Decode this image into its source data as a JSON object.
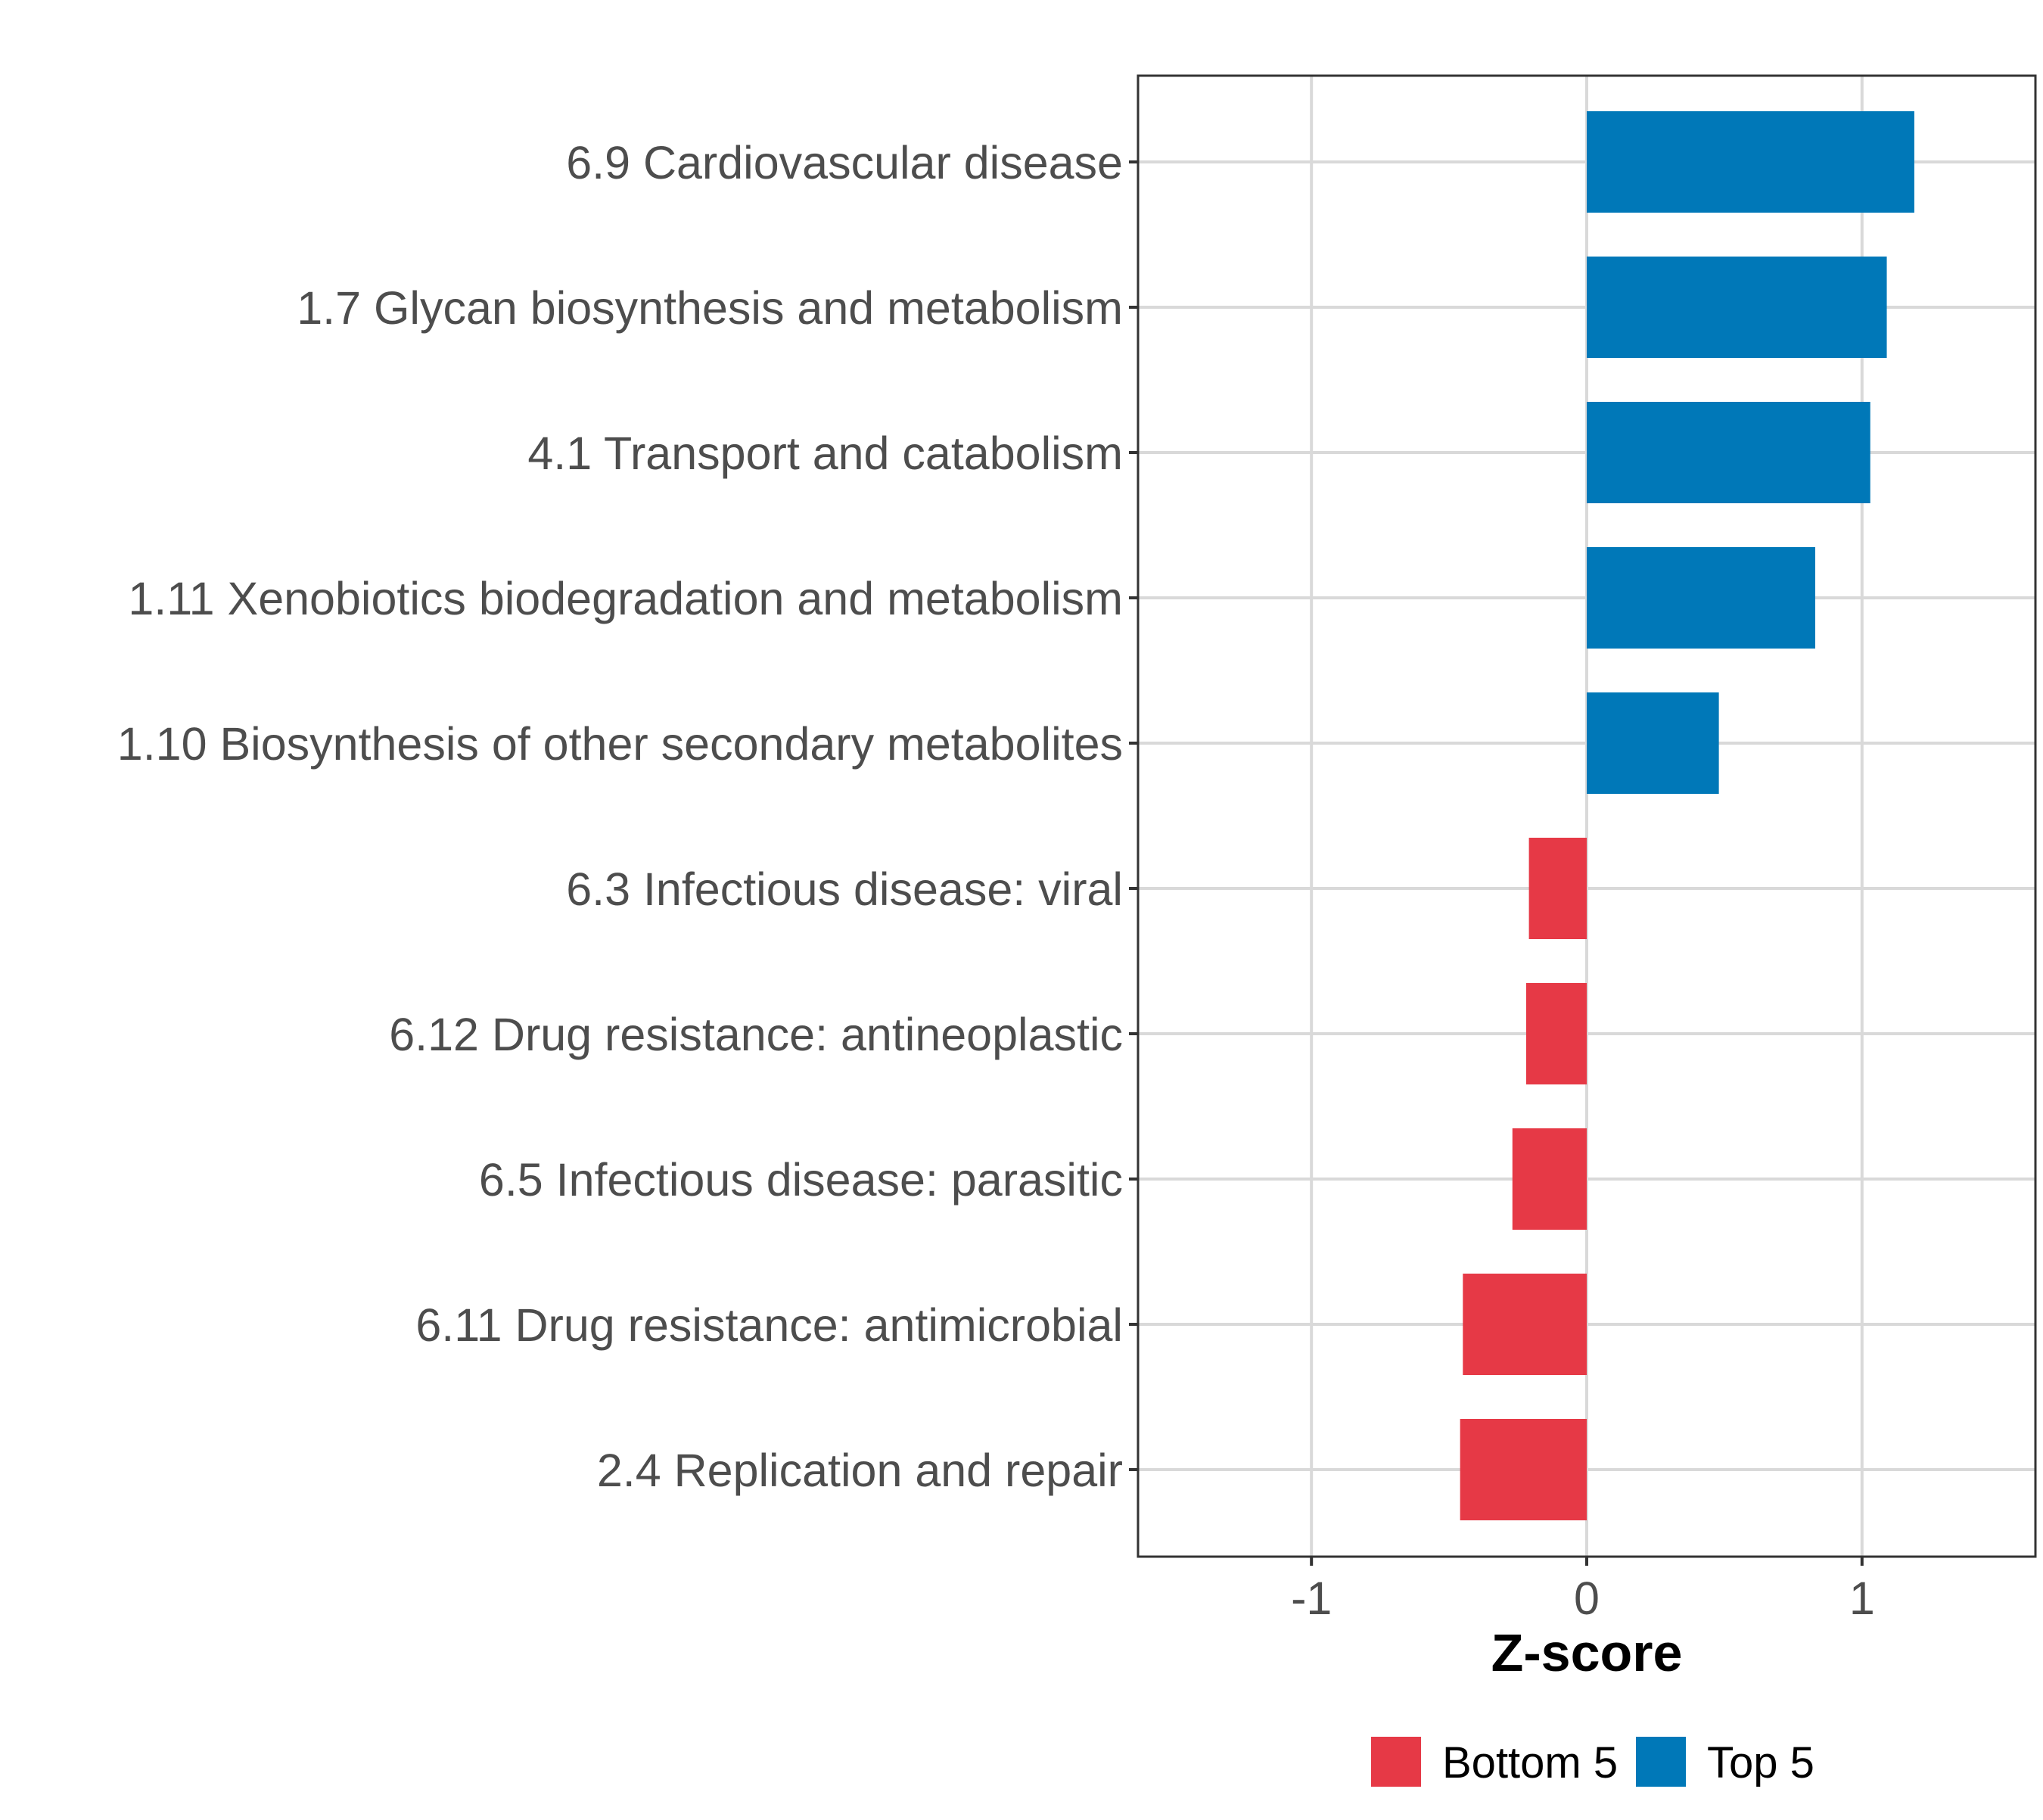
{
  "colors": {
    "top": "#0078b8",
    "bottom": "#e63946",
    "grid": "#d9d9d9",
    "text": "#4d4d4d"
  },
  "chart_data": {
    "type": "bar",
    "orientation": "horizontal",
    "categories": [
      "6.9 Cardiovascular disease",
      "1.7 Glycan biosynthesis and metabolism",
      "4.1 Transport and catabolism",
      "1.11 Xenobiotics biodegradation and metabolism",
      "1.10 Biosynthesis of other secondary metabolites",
      "6.3 Infectious disease: viral",
      "6.12 Drug resistance: antineoplastic",
      "6.5 Infectious disease: parasitic",
      "6.11 Drug resistance: antimicrobial",
      "2.4 Replication and repair"
    ],
    "values": [
      1.19,
      1.09,
      1.03,
      0.83,
      0.48,
      -0.21,
      -0.22,
      -0.27,
      -0.45,
      -0.46
    ],
    "groups": [
      "Top 5",
      "Top 5",
      "Top 5",
      "Top 5",
      "Top 5",
      "Bottom 5",
      "Bottom 5",
      "Bottom 5",
      "Bottom 5",
      "Bottom 5"
    ],
    "xlabel": "Z-score",
    "ylabel": "",
    "xlim": [
      -1.63,
      1.63
    ],
    "xticks": [
      -1,
      0,
      1
    ],
    "xtick_labels": [
      "-1",
      "0",
      "1"
    ],
    "grid": true,
    "legend": {
      "position": "bottom",
      "entries": [
        {
          "label": "Bottom 5",
          "group": "Bottom 5"
        },
        {
          "label": "Top 5",
          "group": "Top 5"
        }
      ]
    }
  }
}
